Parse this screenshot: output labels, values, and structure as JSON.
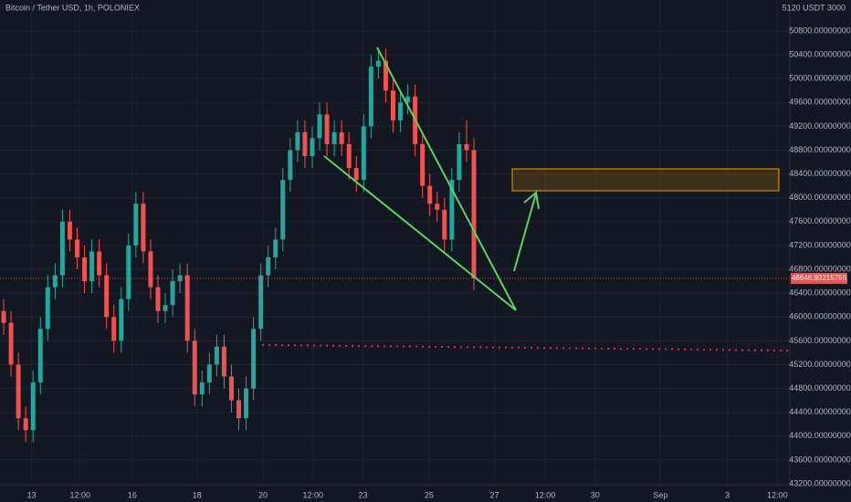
{
  "chart_data": {
    "type": "candlestick",
    "title": "Bitcoin / Tether USD, 1h, POLONIEX",
    "axis_header": "5120 USDT 3000",
    "up_color": "#26a69a",
    "down_color": "#ef5350",
    "grid": true,
    "xlim": [
      0,
      107.5
    ],
    "xticks": [
      {
        "value": 4.3,
        "label": "13"
      },
      {
        "value": 10.9,
        "label": "12:00"
      },
      {
        "value": 18,
        "label": "16"
      },
      {
        "value": 26.8,
        "label": "18"
      },
      {
        "value": 35.8,
        "label": "20"
      },
      {
        "value": 42.6,
        "label": "12:00"
      },
      {
        "value": 49.4,
        "label": "23"
      },
      {
        "value": 58.4,
        "label": "25"
      },
      {
        "value": 67.3,
        "label": "27"
      },
      {
        "value": 74.2,
        "label": "12:00"
      },
      {
        "value": 81,
        "label": "30"
      },
      {
        "value": 89.9,
        "label": "Sep"
      },
      {
        "value": 99,
        "label": "3"
      },
      {
        "value": 105.8,
        "label": "12:00"
      }
    ],
    "ylim": [
      43170,
      51320
    ],
    "yticks": [
      {
        "value": 43200,
        "label": "43200.00000000"
      },
      {
        "value": 43600,
        "label": "43600.00000000"
      },
      {
        "value": 44000,
        "label": "44000.00000000"
      },
      {
        "value": 44400,
        "label": "44400.00000000"
      },
      {
        "value": 44800,
        "label": "44800.00000000"
      },
      {
        "value": 45200,
        "label": "45200.00000000"
      },
      {
        "value": 45600,
        "label": "45600.00000000"
      },
      {
        "value": 46000,
        "label": "46000.00000000"
      },
      {
        "value": 46400,
        "label": "46400.00000000"
      },
      {
        "value": 46800,
        "label": "46800.00000000"
      },
      {
        "value": 47200,
        "label": "47200.00000000"
      },
      {
        "value": 47600,
        "label": "47600.00000000"
      },
      {
        "value": 48000,
        "label": "48000.00000000"
      },
      {
        "value": 48400,
        "label": "48400.00000000"
      },
      {
        "value": 48800,
        "label": "48800.00000000"
      },
      {
        "value": 49200,
        "label": "49200.00000000"
      },
      {
        "value": 49600,
        "label": "49600.00000000"
      },
      {
        "value": 50000,
        "label": "50000.00000000"
      },
      {
        "value": 50400,
        "label": "50400.00000000"
      },
      {
        "value": 50800,
        "label": "50800.00000000"
      }
    ],
    "open": [
      46100,
      45900,
      45200,
      44300,
      44100,
      44900,
      45800,
      46500,
      46700,
      47600,
      47300,
      47000,
      46600,
      47100,
      46700,
      46000,
      45600,
      46300,
      47200,
      47900,
      47100,
      46500,
      46100,
      46200,
      46600,
      46700,
      45600,
      44700,
      44900,
      45200,
      45500,
      45000,
      44600,
      44300,
      44800,
      45800,
      46700,
      47000,
      47300,
      48300,
      48800,
      49100,
      48700,
      49000,
      49400,
      48900,
      49100,
      48900,
      48500,
      48300,
      49200,
      50200,
      50300,
      49800,
      49300,
      49600,
      49700,
      48900,
      48200,
      47900,
      47800,
      47300,
      48300,
      48900,
      48800
    ],
    "high": [
      46300,
      46100,
      45400,
      44500,
      45100,
      46000,
      46700,
      46900,
      47800,
      47800,
      47500,
      47200,
      47300,
      47300,
      46900,
      46200,
      46500,
      47400,
      48100,
      48100,
      47300,
      46700,
      46400,
      46800,
      46900,
      46900,
      45800,
      45100,
      45400,
      45700,
      45700,
      45200,
      44800,
      45000,
      46000,
      46900,
      47200,
      47500,
      48500,
      49000,
      49300,
      49300,
      49200,
      49600,
      49600,
      49300,
      49300,
      49100,
      48700,
      49400,
      50400,
      50500,
      50500,
      50000,
      49800,
      49900,
      49900,
      49100,
      48400,
      48100,
      48000,
      48500,
      49100,
      49300,
      49000
    ],
    "low": [
      45700,
      45000,
      44100,
      43900,
      43900,
      44700,
      45600,
      46300,
      46500,
      47100,
      46800,
      46400,
      46400,
      46500,
      45800,
      45400,
      45400,
      46100,
      47000,
      46900,
      46300,
      45900,
      45900,
      46000,
      46400,
      45400,
      44500,
      44500,
      44700,
      45000,
      44800,
      44400,
      44100,
      44100,
      44600,
      45600,
      46500,
      46800,
      47100,
      48100,
      48600,
      48500,
      48500,
      48800,
      48700,
      48700,
      48700,
      48300,
      48100,
      48100,
      49000,
      50000,
      49600,
      49100,
      49100,
      49400,
      48700,
      48000,
      47700,
      47600,
      47100,
      47100,
      48100,
      48600,
      46450
    ],
    "close": [
      45900,
      45200,
      44300,
      44100,
      44900,
      45800,
      46500,
      46700,
      47600,
      47300,
      47000,
      46600,
      47100,
      46700,
      46000,
      45600,
      46300,
      47200,
      47900,
      47100,
      46500,
      46100,
      46200,
      46600,
      46700,
      45600,
      44700,
      44900,
      45200,
      45500,
      45000,
      44600,
      44300,
      44800,
      45800,
      46700,
      47000,
      47300,
      48300,
      48800,
      49100,
      48700,
      49000,
      49400,
      48900,
      49100,
      48900,
      48500,
      48300,
      49200,
      50200,
      50300,
      49800,
      49300,
      49600,
      49700,
      48900,
      48200,
      47900,
      47800,
      47300,
      48300,
      48900,
      48800,
      46646.93215756
    ]
  }
}
